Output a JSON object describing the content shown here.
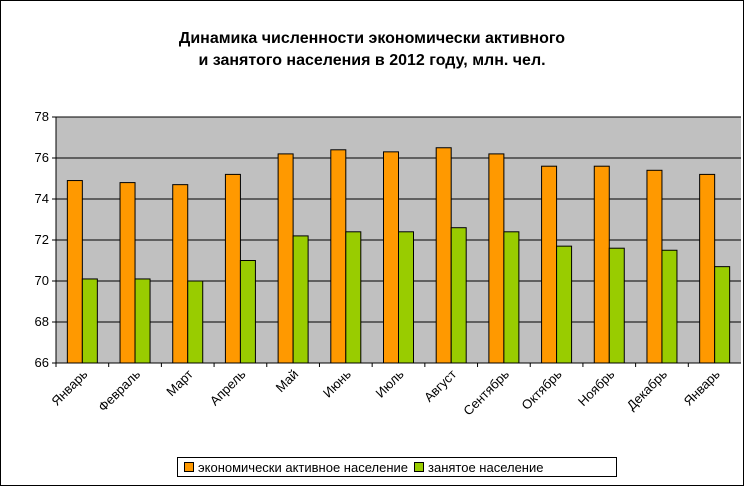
{
  "chart_data": {
    "type": "bar",
    "title_line1": "Динамика численности экономически активного",
    "title_line2": "и занятого населения в 2012 году, млн. чел.",
    "xlabel": "",
    "ylabel": "",
    "ylim": [
      66,
      78
    ],
    "yticks": [
      "66",
      "68",
      "70",
      "72",
      "74",
      "76",
      "78"
    ],
    "categories": [
      "Январь",
      "Февраль",
      "Март",
      "Апрель",
      "Май",
      "Июнь",
      "Июль",
      "Август",
      "Сентябрь",
      "Октябрь",
      "Ноябрь",
      "Декабрь",
      "Январь"
    ],
    "series": [
      {
        "name": "экономически активное население",
        "color": "#ff9900",
        "values": [
          74.9,
          74.8,
          74.7,
          75.2,
          76.2,
          76.4,
          76.3,
          76.5,
          76.2,
          75.6,
          75.6,
          75.4,
          75.2
        ]
      },
      {
        "name": "занятое население",
        "color": "#99cc00",
        "values": [
          70.1,
          70.1,
          70.0,
          71.0,
          72.2,
          72.4,
          72.4,
          72.6,
          72.4,
          71.7,
          71.6,
          71.5,
          70.7
        ]
      }
    ],
    "grid": true,
    "legend_position": "bottom",
    "plot_background": "#c0c0c0"
  }
}
